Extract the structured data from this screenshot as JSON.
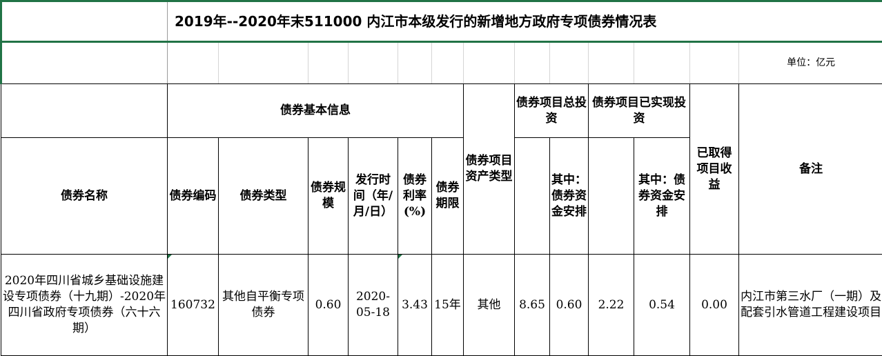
{
  "title": "2019年--2020年末511000 内江市本级发行的新增地方政府专项债券情况表",
  "unit": "单位：亿元",
  "headers": {
    "basic_info": "债券基本信息",
    "total_investment": "债券项目总投资",
    "realized_investment": "债券项目已实现投资",
    "bond_name": "债券名称",
    "bond_code": "债券编码",
    "bond_type": "债券类型",
    "bond_scale": "债券规模",
    "issue_date": "发行时间（年/月/日）",
    "rate": "债券利率(%)",
    "term": "债券期限",
    "asset_type": "债券项目资产类型",
    "total_of_which": "其中：债券资金安排",
    "realized_of_which": "其中：债券资金安排",
    "income": "已取得项目收益",
    "remarks": "备注"
  },
  "rows": [
    {
      "bond_name": "2020年四川省城乡基础设施建设专项债券（十九期）-2020年四川省政府专项债券（六十六期）",
      "bond_code": "160732",
      "bond_type": "其他自平衡专项债券",
      "bond_scale": "0.60",
      "issue_date": "2020-05-18",
      "rate": "3.43",
      "term": "15年",
      "asset_type": "其他",
      "total_investment": "8.65",
      "total_of_which": "0.60",
      "realized_investment": "2.22",
      "realized_of_which": "0.54",
      "income": "0.00",
      "remarks": "内江市第三水厂（一期）及配套引水管道工程建设项目"
    }
  ],
  "colors": {
    "selection_border": "#217346",
    "grid": "#d4d4d4"
  }
}
